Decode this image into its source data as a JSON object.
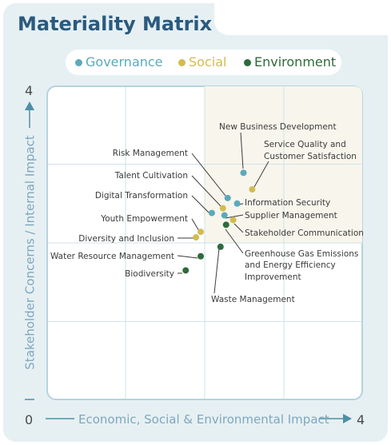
{
  "title": "Materiality Matrix",
  "legend": [
    {
      "name": "Governance",
      "color": "#5ba9bb"
    },
    {
      "name": "Social",
      "color": "#d4bb50"
    },
    {
      "name": "Environment",
      "color": "#2e6b3b"
    }
  ],
  "chart_data": {
    "type": "scatter",
    "title": "Materiality Matrix",
    "xlabel": "Economic, Social & Environmental Impact",
    "ylabel": "Stakeholder Concerns / Internal Impact",
    "xlim": [
      0,
      4
    ],
    "ylim": [
      0,
      4
    ],
    "tick_labels": {
      "origin": "0",
      "x_max": "4",
      "y_max": "4"
    },
    "highlight_quadrant": {
      "x": [
        2,
        4
      ],
      "y": [
        2,
        4
      ],
      "color": "#f8f6ec"
    },
    "series": [
      {
        "name": "Governance",
        "color": "#5ba9bb",
        "points": [
          {
            "label": "New Business Development",
            "x": 2.49,
            "y": 2.89
          },
          {
            "label": "Risk Management",
            "x": 2.29,
            "y": 2.57
          },
          {
            "label": "Information Security",
            "x": 2.41,
            "y": 2.5
          },
          {
            "label": "Supplier Management",
            "x": 2.25,
            "y": 2.35
          },
          {
            "label": "Digital Transformation",
            "x": 2.09,
            "y": 2.38
          }
        ]
      },
      {
        "name": "Social",
        "color": "#d4bb50",
        "points": [
          {
            "label": "Service Quality and Customer Satisfaction",
            "x": 2.6,
            "y": 2.68
          },
          {
            "label": "Talent Cultivation",
            "x": 2.23,
            "y": 2.44
          },
          {
            "label": "Stakeholder Communication",
            "x": 2.36,
            "y": 2.29
          },
          {
            "label": "Youth Empowerment",
            "x": 1.95,
            "y": 2.14
          },
          {
            "label": "Diversity and Inclusion",
            "x": 1.89,
            "y": 2.07
          }
        ]
      },
      {
        "name": "Environment",
        "color": "#2e6b3b",
        "points": [
          {
            "label": "Greenhouse Gas Emissions and Energy Efficiency Improvement",
            "x": 2.27,
            "y": 2.23
          },
          {
            "label": "Waste Management",
            "x": 2.2,
            "y": 1.95
          },
          {
            "label": "Water Resource Management",
            "x": 1.95,
            "y": 1.83
          },
          {
            "label": "Biodiversity",
            "x": 1.76,
            "y": 1.65
          }
        ]
      }
    ]
  }
}
